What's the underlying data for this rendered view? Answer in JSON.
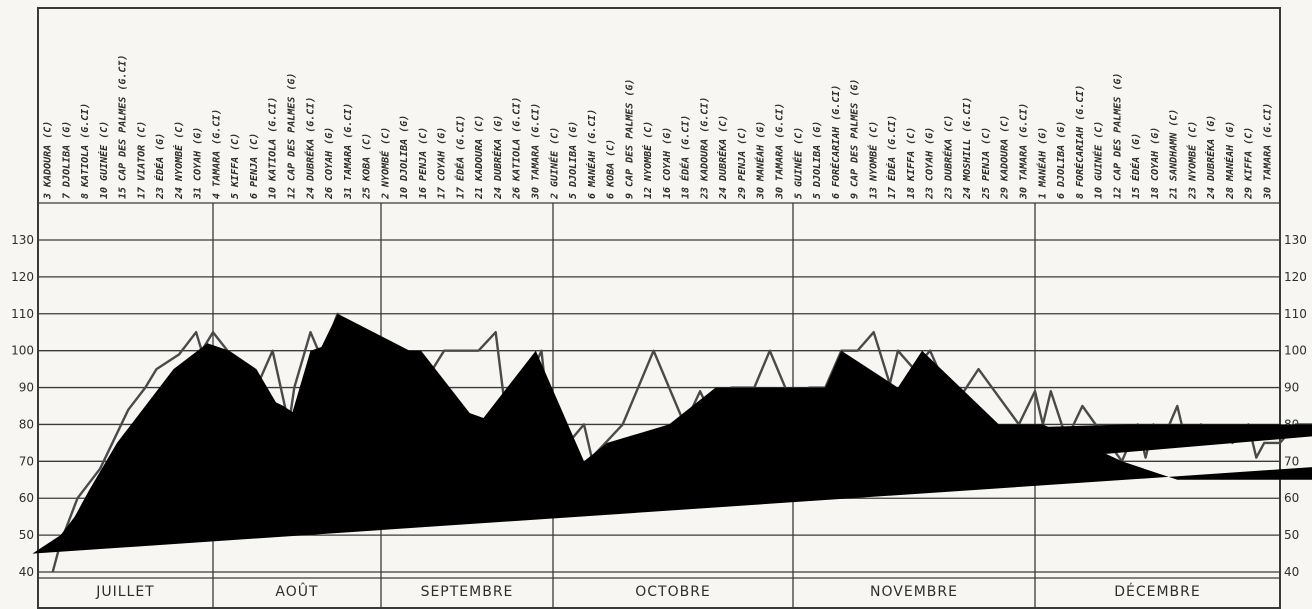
{
  "chart_data": {
    "type": "line",
    "ylim": [
      40,
      130
    ],
    "y_ticks": [
      "40",
      "50",
      "60",
      "70",
      "80",
      "90",
      "100",
      "110",
      "120",
      "130"
    ],
    "grid": true,
    "months": [
      {
        "label": "JUILLET",
        "start_day": 1,
        "days": 31
      },
      {
        "label": "AOÛT",
        "start_day": 32,
        "days": 31
      },
      {
        "label": "SEPTEMBRE",
        "start_day": 63,
        "days": 30
      },
      {
        "label": "OCTOBRE",
        "start_day": 93,
        "days": 31
      },
      {
        "label": "NOVEMBRE",
        "start_day": 124,
        "days": 30
      },
      {
        "label": "DÉCEMBRE",
        "start_day": 154,
        "days": 31
      }
    ],
    "events": [
      {
        "day": "3",
        "m": 0,
        "name": "KADOURA (C)"
      },
      {
        "day": "7",
        "m": 0,
        "name": "DJOLIBA (G)"
      },
      {
        "day": "8",
        "m": 0,
        "name": "KATIOLA (G.CI)"
      },
      {
        "day": "10",
        "m": 0,
        "name": "GUINÉE (C)"
      },
      {
        "day": "15",
        "m": 0,
        "name": "CAP DES PALMES (G.CI)"
      },
      {
        "day": "17",
        "m": 0,
        "name": "VIATOR (C)"
      },
      {
        "day": "23",
        "m": 0,
        "name": "ÉDÉA (G)"
      },
      {
        "day": "24",
        "m": 0,
        "name": "NYOMBÉ (C)"
      },
      {
        "day": "31",
        "m": 0,
        "name": "COYAH (G)"
      },
      {
        "day": "4",
        "m": 1,
        "name": "TAMARA (G.CI)"
      },
      {
        "day": "5",
        "m": 1,
        "name": "KIFFA (C)"
      },
      {
        "day": "6",
        "m": 1,
        "name": "PENJA (C)"
      },
      {
        "day": "10",
        "m": 1,
        "name": "KATIOLA (G.CI)"
      },
      {
        "day": "12",
        "m": 1,
        "name": "CAP DES PALMES (G)"
      },
      {
        "day": "24",
        "m": 1,
        "name": "DUBRÉKA (G.CI)"
      },
      {
        "day": "26",
        "m": 1,
        "name": "COYAH (G)"
      },
      {
        "day": "31",
        "m": 1,
        "name": "TAMARA (G.CI)"
      },
      {
        "day": "25",
        "m": 1,
        "name": "KOBA (C)"
      },
      {
        "day": "2",
        "m": 2,
        "name": "NYOMBÉ (C)"
      },
      {
        "day": "10",
        "m": 2,
        "name": "DJOLIBA (G)"
      },
      {
        "day": "16",
        "m": 2,
        "name": "PENJA (C)"
      },
      {
        "day": "17",
        "m": 2,
        "name": "COYAH (G)"
      },
      {
        "day": "17",
        "m": 2,
        "name": "ÉDÉA (G.CI)"
      },
      {
        "day": "21",
        "m": 2,
        "name": "KADOURA (C)"
      },
      {
        "day": "24",
        "m": 2,
        "name": "DUBRÉKA (G)"
      },
      {
        "day": "26",
        "m": 2,
        "name": "KATIOLA (G.CI)"
      },
      {
        "day": "30",
        "m": 2,
        "name": "TAMARA (G.CI)"
      },
      {
        "day": "2",
        "m": 3,
        "name": "GUINÉE (C)"
      },
      {
        "day": "5",
        "m": 3,
        "name": "DJOLIBA (G)"
      },
      {
        "day": "6",
        "m": 3,
        "name": "MANÉAH (G.CI)"
      },
      {
        "day": "6",
        "m": 3,
        "name": "KOBA (C)"
      },
      {
        "day": "9",
        "m": 3,
        "name": "CAP DES PALMES (G)"
      },
      {
        "day": "12",
        "m": 3,
        "name": "NYOMBÉ (C)"
      },
      {
        "day": "16",
        "m": 3,
        "name": "COYAH (G)"
      },
      {
        "day": "18",
        "m": 3,
        "name": "ÉDÉA (G.CI)"
      },
      {
        "day": "23",
        "m": 3,
        "name": "KADOURA (G.CI)"
      },
      {
        "day": "24",
        "m": 3,
        "name": "DUBRÉKA (C)"
      },
      {
        "day": "29",
        "m": 3,
        "name": "PENJA (C)"
      },
      {
        "day": "30",
        "m": 3,
        "name": "MANÉAH (G)"
      },
      {
        "day": "30",
        "m": 3,
        "name": "TAMARA (G.CI)"
      },
      {
        "day": "5",
        "m": 4,
        "name": "GUINÉE (C)"
      },
      {
        "day": "5",
        "m": 4,
        "name": "DJOLIBA (G)"
      },
      {
        "day": "6",
        "m": 4,
        "name": "FORÉCARIAH (G.CI)"
      },
      {
        "day": "9",
        "m": 4,
        "name": "CAP DES PALMES (G)"
      },
      {
        "day": "13",
        "m": 4,
        "name": "NYOMBÉ (C)"
      },
      {
        "day": "17",
        "m": 4,
        "name": "ÉDÉA (G.CI)"
      },
      {
        "day": "18",
        "m": 4,
        "name": "KIFFA (C)"
      },
      {
        "day": "23",
        "m": 4,
        "name": "COYAH (G)"
      },
      {
        "day": "23",
        "m": 4,
        "name": "DUBRÉKA (C)"
      },
      {
        "day": "24",
        "m": 4,
        "name": "MOSHILL (G.CI)"
      },
      {
        "day": "25",
        "m": 4,
        "name": "PENJA (C)"
      },
      {
        "day": "29",
        "m": 4,
        "name": "KADOURA (C)"
      },
      {
        "day": "30",
        "m": 4,
        "name": "TAMARA (G.CI)"
      },
      {
        "day": "1",
        "m": 5,
        "name": "MANÉAH (G)"
      },
      {
        "day": "6",
        "m": 5,
        "name": "DJOLIBA (G)"
      },
      {
        "day": "8",
        "m": 5,
        "name": "FORÉCARIAH (G.CI)"
      },
      {
        "day": "10",
        "m": 5,
        "name": "GUINÉE (C)"
      },
      {
        "day": "12",
        "m": 5,
        "name": "CAP DES PALMES (G)"
      },
      {
        "day": "15",
        "m": 5,
        "name": "ÉDÉA (G)"
      },
      {
        "day": "18",
        "m": 5,
        "name": "COYAH (G)"
      },
      {
        "day": "21",
        "m": 5,
        "name": "SANDHAMN (C)"
      },
      {
        "day": "23",
        "m": 5,
        "name": "NYOMBÉ (C)"
      },
      {
        "day": "24",
        "m": 5,
        "name": "DUBRÉKA (G)"
      },
      {
        "day": "28",
        "m": 5,
        "name": "MANÉAH (G)"
      },
      {
        "day": "29",
        "m": 5,
        "name": "KIFFA (C)"
      },
      {
        "day": "30",
        "m": 5,
        "name": "TAMARA (G.CI)"
      }
    ],
    "series": [
      {
        "style": "solid",
        "points": [
          [
            3.6,
            40
          ],
          [
            5,
            48
          ],
          [
            8,
            60
          ],
          [
            12,
            68
          ],
          [
            17,
            84
          ],
          [
            20,
            90
          ],
          [
            22,
            95
          ],
          [
            26,
            99
          ],
          [
            29,
            105
          ],
          [
            30,
            100
          ],
          [
            32,
            105
          ],
          [
            40,
            90
          ],
          [
            43,
            100
          ],
          [
            46,
            80
          ],
          [
            47,
            90
          ],
          [
            50,
            105
          ],
          [
            52,
            98
          ],
          [
            55,
            110
          ],
          [
            57,
            105
          ],
          [
            65,
            80
          ],
          [
            70,
            90
          ],
          [
            74,
            100
          ],
          [
            80,
            100
          ],
          [
            83,
            105
          ],
          [
            85,
            80
          ],
          [
            87,
            86
          ],
          [
            91,
            100
          ],
          [
            93,
            70
          ],
          [
            97,
            80
          ],
          [
            98,
            71
          ],
          [
            102,
            80
          ],
          [
            106,
            100
          ],
          [
            110,
            80
          ],
          [
            112,
            89
          ],
          [
            114,
            80
          ],
          [
            116,
            90
          ],
          [
            119,
            90
          ],
          [
            121,
            100
          ],
          [
            124,
            85
          ],
          [
            126,
            90
          ],
          [
            128,
            90
          ],
          [
            130,
            100
          ],
          [
            132,
            100
          ],
          [
            134,
            105
          ],
          [
            136,
            91
          ],
          [
            137,
            100
          ],
          [
            139,
            95
          ],
          [
            141,
            100
          ],
          [
            144,
            85
          ],
          [
            147,
            95
          ],
          [
            152,
            80
          ],
          [
            154,
            89
          ],
          [
            155,
            80
          ],
          [
            156,
            89
          ],
          [
            158,
            76
          ],
          [
            160,
            85
          ],
          [
            165,
            70
          ],
          [
            167,
            80
          ],
          [
            168,
            71
          ],
          [
            169,
            80
          ],
          [
            170,
            75
          ],
          [
            172,
            85
          ],
          [
            173,
            76
          ],
          [
            175,
            80
          ],
          [
            179,
            75
          ],
          [
            181,
            80
          ],
          [
            182,
            71
          ],
          [
            183,
            75
          ],
          [
            185,
            75
          ],
          [
            187,
            80
          ],
          [
            194,
            80
          ],
          [
            196,
            71
          ],
          [
            199,
            80
          ],
          [
            203,
            80
          ],
          [
            207,
            85
          ]
        ]
      },
      {
        "style": "dashed",
        "points": [
          [
            5,
            48
          ],
          [
            10,
            62
          ],
          [
            15,
            75
          ],
          [
            20,
            85
          ],
          [
            25,
            95
          ],
          [
            31,
            102
          ],
          [
            35,
            100
          ],
          [
            40,
            95
          ],
          [
            46,
            80
          ],
          [
            50,
            100
          ],
          [
            52,
            101
          ],
          [
            55,
            110
          ],
          [
            68,
            100
          ],
          [
            70,
            100
          ],
          [
            80,
            80
          ],
          [
            90,
            100
          ],
          [
            97,
            70
          ],
          [
            100,
            75
          ],
          [
            108,
            80
          ],
          [
            114,
            90
          ],
          [
            120,
            90
          ],
          [
            121,
            90
          ],
          [
            124,
            90
          ],
          [
            126,
            90
          ],
          [
            128,
            90
          ],
          [
            130,
            100
          ],
          [
            137,
            90
          ],
          [
            140,
            100
          ],
          [
            150,
            79
          ],
          [
            166,
            80
          ],
          [
            174,
            80
          ],
          [
            207,
            80
          ]
        ]
      },
      {
        "style": "dotted",
        "points": [
          [
            0,
            45
          ],
          [
            5,
            50
          ],
          [
            10,
            60
          ],
          [
            15,
            70
          ],
          [
            18,
            79
          ],
          [
            25,
            85
          ],
          [
            38,
            90
          ],
          [
            45,
            85
          ],
          [
            50,
            80
          ],
          [
            55,
            75
          ],
          [
            58,
            80
          ],
          [
            66,
            80
          ],
          [
            75,
            85
          ],
          [
            84,
            80
          ],
          [
            95,
            70
          ],
          [
            101,
            63
          ],
          [
            105,
            75
          ],
          [
            120,
            80
          ],
          [
            155,
            80
          ],
          [
            160,
            75
          ],
          [
            165,
            70
          ],
          [
            172,
            65
          ],
          [
            182,
            65
          ],
          [
            196,
            65
          ],
          [
            200,
            70
          ]
        ]
      }
    ]
  }
}
